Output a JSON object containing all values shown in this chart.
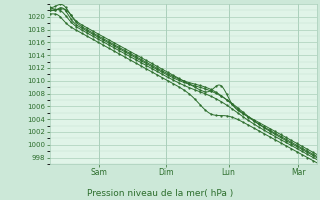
{
  "bg_color": "#cce8d8",
  "plot_bg_color": "#e0f4e8",
  "grid_color_major": "#aacfba",
  "grid_color_minor": "#c0e0cc",
  "line_color": "#2d6e2d",
  "marker_color": "#2d6e2d",
  "xlabel_text": "Pression niveau de la mer( hPa )",
  "ylim": [
    997,
    1022
  ],
  "ytick_vals": [
    998,
    1000,
    1002,
    1004,
    1006,
    1008,
    1010,
    1012,
    1014,
    1016,
    1018,
    1020
  ],
  "day_labels": [
    "Sam",
    "Dim",
    "Lun",
    "Mar"
  ],
  "day_positions": [
    0.185,
    0.435,
    0.67,
    0.93
  ]
}
